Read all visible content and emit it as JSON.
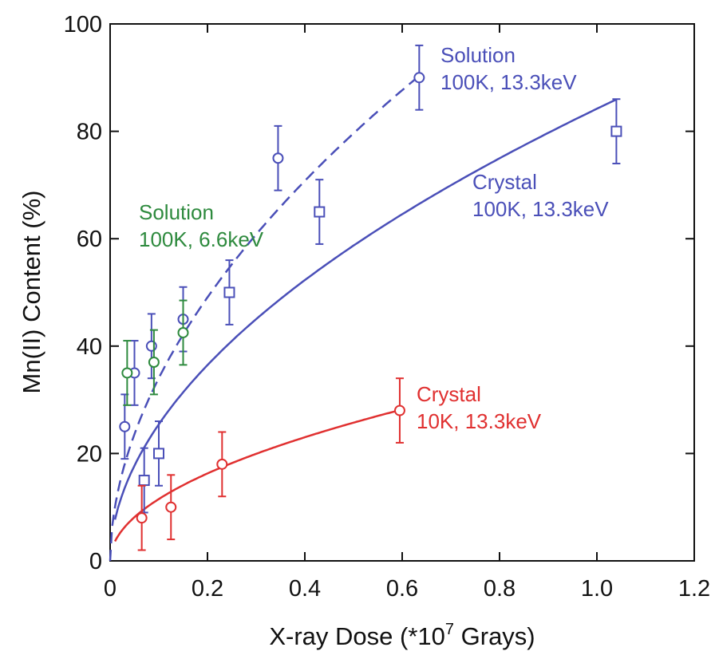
{
  "chart_data": {
    "type": "scatter",
    "xlabel": "X-ray Dose (*10",
    "xlabel_sup": "7",
    "xlabel_tail": " Grays)",
    "ylabel": "Mn(II) Content (%)",
    "xlim": [
      0,
      1.2
    ],
    "ylim": [
      0,
      100
    ],
    "xticks": [
      0,
      0.2,
      0.4,
      0.6,
      0.8,
      1.0,
      1.2
    ],
    "xtick_labels": [
      "0",
      "0.2",
      "0.4",
      "0.6",
      "0.8",
      "1.0",
      "1.2"
    ],
    "yticks": [
      0,
      20,
      40,
      60,
      80,
      100
    ],
    "ytick_labels": [
      "0",
      "20",
      "40",
      "60",
      "80",
      "100"
    ],
    "grid": false,
    "series": [
      {
        "key": "sol100-133",
        "color": "#4a4fb8",
        "marker": "circle",
        "fit_style": "dashed",
        "label_lines": [
          "Solution",
          "100K, 13.3keV"
        ],
        "points": [
          {
            "x": 0.03,
            "y": 25,
            "err": 6
          },
          {
            "x": 0.05,
            "y": 35,
            "err": 6
          },
          {
            "x": 0.085,
            "y": 40,
            "err": 6
          },
          {
            "x": 0.15,
            "y": 45,
            "err": 6
          },
          {
            "x": 0.345,
            "y": 75,
            "err": 6
          },
          {
            "x": 0.635,
            "y": 90,
            "err": 6
          }
        ],
        "fit": {
          "x_range": [
            0.0,
            0.635
          ],
          "a": 114.8,
          "b": 0.528
        }
      },
      {
        "key": "cry100-133",
        "color": "#4a4fb8",
        "marker": "square",
        "fit_style": "solid",
        "label_lines": [
          "Crystal",
          "100K, 13.3keV"
        ],
        "points": [
          {
            "x": 0.07,
            "y": 15,
            "err": 6
          },
          {
            "x": 0.1,
            "y": 20,
            "err": 6
          },
          {
            "x": 0.245,
            "y": 50,
            "err": 6
          },
          {
            "x": 0.43,
            "y": 65,
            "err": 6
          },
          {
            "x": 1.04,
            "y": 80,
            "err": 6
          }
        ],
        "fit": {
          "x_range": [
            0.01,
            1.04
          ],
          "a": 84.2,
          "b": 0.52
        }
      },
      {
        "key": "sol100-66",
        "color": "#2e8a3e",
        "marker": "circle",
        "fit_style": "none",
        "label_lines": [
          "Solution",
          "100K, 6.6keV"
        ],
        "points": [
          {
            "x": 0.035,
            "y": 35,
            "err": 6
          },
          {
            "x": 0.09,
            "y": 37,
            "err": 6
          },
          {
            "x": 0.15,
            "y": 42.5,
            "err": 6
          }
        ]
      },
      {
        "key": "cry10-133",
        "color": "#e03030",
        "marker": "circle",
        "fit_style": "solid",
        "label_lines": [
          "Crystal",
          "10K, 13.3keV"
        ],
        "points": [
          {
            "x": 0.065,
            "y": 8,
            "err": 6
          },
          {
            "x": 0.125,
            "y": 10,
            "err": 6
          },
          {
            "x": 0.23,
            "y": 18,
            "err": 6
          },
          {
            "x": 0.595,
            "y": 28,
            "err": 6
          }
        ],
        "fit": {
          "x_range": [
            0.01,
            0.595
          ],
          "a": 36.4,
          "b": 0.5
        }
      }
    ]
  }
}
